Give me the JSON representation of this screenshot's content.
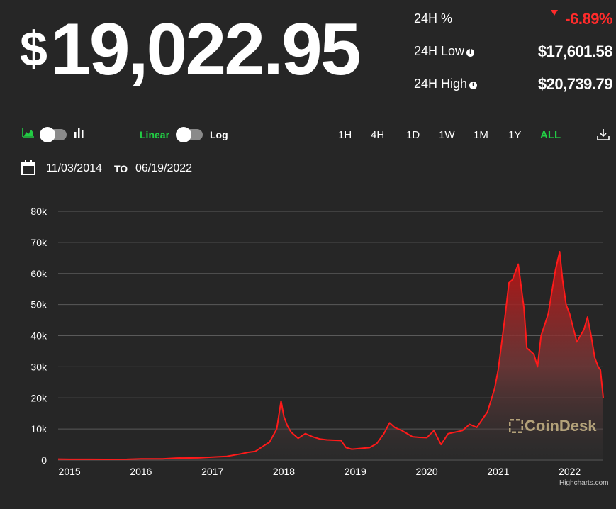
{
  "price": {
    "currency": "$",
    "amount": "19,022.95"
  },
  "stats": [
    {
      "label": "24H %",
      "value": "-6.89%",
      "negative": true,
      "info": false
    },
    {
      "label": "24H Low",
      "value": "$17,601.58",
      "negative": false,
      "info": true
    },
    {
      "label": "24H High",
      "value": "$20,739.79",
      "negative": false,
      "info": true
    }
  ],
  "controls": {
    "scale_linear": "Linear",
    "scale_log": "Log",
    "ranges": [
      "1H",
      "4H",
      "1D",
      "1W",
      "1M",
      "1Y",
      "ALL"
    ],
    "active_range": "ALL",
    "icons": [
      "area-chart-icon",
      "bar-chart-icon",
      "download-icon",
      "calendar-icon"
    ]
  },
  "date_range": {
    "from": "11/03/2014",
    "to_label": "TO",
    "to": "06/19/2022"
  },
  "watermark": "CoinDesk",
  "credit": "Highcharts.com",
  "colors": {
    "background": "#262626",
    "line": "#ff1a1a",
    "accent_green": "#22cc44",
    "negative": "#ff2b2b"
  },
  "chart_data": {
    "type": "area",
    "xlabel": "",
    "ylabel": "",
    "xlim": [
      2014.84,
      2022.47
    ],
    "ylim": [
      0,
      80000
    ],
    "yticks": [
      0,
      10000,
      20000,
      30000,
      40000,
      50000,
      60000,
      70000,
      80000
    ],
    "ytick_labels": [
      "0",
      "10k",
      "20k",
      "30k",
      "40k",
      "50k",
      "60k",
      "70k",
      "80k"
    ],
    "xticks": [
      2015,
      2016,
      2017,
      2018,
      2019,
      2020,
      2021,
      2022
    ],
    "xtick_labels": [
      "2015",
      "2016",
      "2017",
      "2018",
      "2019",
      "2020",
      "2021",
      "2022"
    ],
    "grid": true,
    "legend": false,
    "series": [
      {
        "x": [
          2014.84,
          2015.0,
          2015.2,
          2015.5,
          2015.8,
          2016.0,
          2016.3,
          2016.5,
          2016.8,
          2017.0,
          2017.2,
          2017.4,
          2017.5,
          2017.6,
          2017.7,
          2017.8,
          2017.9,
          2017.96,
          2018.0,
          2018.05,
          2018.1,
          2018.2,
          2018.3,
          2018.4,
          2018.5,
          2018.6,
          2018.8,
          2018.87,
          2018.95,
          2019.0,
          2019.2,
          2019.3,
          2019.4,
          2019.48,
          2019.55,
          2019.65,
          2019.8,
          2019.9,
          2020.0,
          2020.1,
          2020.2,
          2020.3,
          2020.5,
          2020.6,
          2020.7,
          2020.85,
          2020.95,
          2021.0,
          2021.05,
          2021.1,
          2021.15,
          2021.2,
          2021.28,
          2021.36,
          2021.4,
          2021.5,
          2021.55,
          2021.6,
          2021.7,
          2021.8,
          2021.86,
          2021.9,
          2021.95,
          2022.0,
          2022.1,
          2022.2,
          2022.25,
          2022.3,
          2022.35,
          2022.4,
          2022.43,
          2022.47
        ],
        "values": [
          330,
          250,
          240,
          230,
          240,
          420,
          410,
          650,
          700,
          950,
          1200,
          2000,
          2500,
          2800,
          4300,
          5800,
          10000,
          19000,
          14000,
          11000,
          9000,
          7000,
          8500,
          7500,
          6800,
          6500,
          6300,
          4000,
          3500,
          3600,
          4000,
          5300,
          8500,
          12000,
          10500,
          9500,
          7500,
          7300,
          7200,
          9500,
          5000,
          8500,
          9500,
          11500,
          10500,
          15500,
          23000,
          29000,
          38000,
          47000,
          57000,
          58000,
          63000,
          49000,
          36000,
          34000,
          30000,
          40000,
          47000,
          61000,
          67000,
          58000,
          50000,
          47000,
          38000,
          42000,
          46000,
          40000,
          33000,
          30000,
          29000,
          20000
        ]
      }
    ]
  }
}
